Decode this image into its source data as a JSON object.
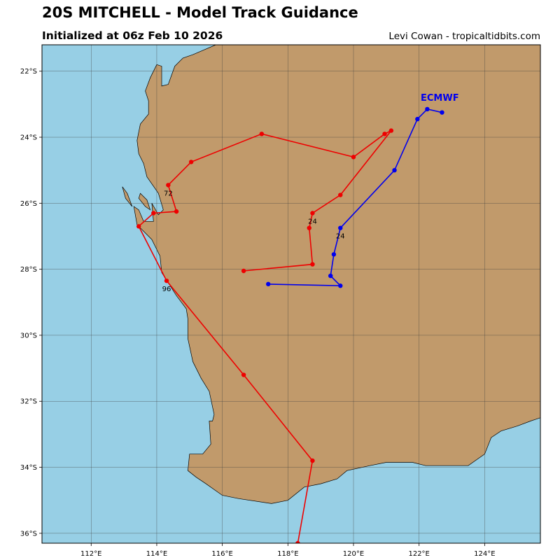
{
  "header": {
    "title": "20S MITCHELL - Model Track Guidance",
    "subtitle": "Initialized at 06z Feb 10 2026",
    "credit": "Levi Cowan - tropicaltidbits.com"
  },
  "colors": {
    "ocean": "#97cfe5",
    "land": "#c19a6b",
    "grid": "#3f3f3f",
    "ecmwf": "#0000ee",
    "other_track": "#ee0000"
  },
  "map": {
    "lon_range": [
      110.5,
      125.7
    ],
    "lat_range": [
      -36.3,
      -21.2
    ],
    "lon_ticks": [
      112,
      114,
      116,
      118,
      120,
      122,
      124
    ],
    "lat_ticks": [
      -22,
      -24,
      -26,
      -28,
      -30,
      -32,
      -34,
      -36
    ],
    "lon_tick_labels": [
      "112°E",
      "114°E",
      "116°E",
      "118°E",
      "120°E",
      "122°E",
      "124°E"
    ],
    "lat_tick_labels": [
      "22°S",
      "24°S",
      "26°S",
      "28°S",
      "30°S",
      "32°S",
      "34°S",
      "36°S"
    ],
    "grid": true,
    "coastline": [
      [
        115.8,
        -21.2
      ],
      [
        115.1,
        -21.5
      ],
      [
        114.8,
        -21.6
      ],
      [
        114.55,
        -21.85
      ],
      [
        114.35,
        -22.4
      ],
      [
        114.15,
        -22.45
      ],
      [
        114.15,
        -21.85
      ],
      [
        114.0,
        -21.8
      ],
      [
        113.8,
        -22.2
      ],
      [
        113.65,
        -22.6
      ],
      [
        113.75,
        -22.9
      ],
      [
        113.75,
        -23.3
      ],
      [
        113.5,
        -23.6
      ],
      [
        113.4,
        -24.1
      ],
      [
        113.45,
        -24.5
      ],
      [
        113.6,
        -24.8
      ],
      [
        113.7,
        -25.2
      ],
      [
        114.05,
        -25.7
      ],
      [
        114.2,
        -26.2
      ],
      [
        114.05,
        -26.35
      ],
      [
        113.85,
        -26.0
      ],
      [
        113.9,
        -26.55
      ],
      [
        113.6,
        -26.55
      ],
      [
        113.45,
        -26.2
      ],
      [
        113.3,
        -26.1
      ],
      [
        113.4,
        -26.65
      ],
      [
        113.85,
        -27.1
      ],
      [
        114.1,
        -27.6
      ],
      [
        114.15,
        -28.1
      ],
      [
        114.6,
        -28.8
      ],
      [
        114.9,
        -29.2
      ],
      [
        114.95,
        -29.5
      ],
      [
        114.95,
        -30.1
      ],
      [
        115.1,
        -30.8
      ],
      [
        115.35,
        -31.3
      ],
      [
        115.6,
        -31.7
      ],
      [
        115.75,
        -32.4
      ],
      [
        115.7,
        -32.6
      ],
      [
        115.6,
        -32.6
      ],
      [
        115.65,
        -33.3
      ],
      [
        115.4,
        -33.6
      ],
      [
        115.0,
        -33.6
      ],
      [
        114.95,
        -34.1
      ],
      [
        115.2,
        -34.3
      ],
      [
        115.5,
        -34.5
      ],
      [
        116.0,
        -34.85
      ],
      [
        116.5,
        -34.95
      ],
      [
        117.5,
        -35.1
      ],
      [
        118.0,
        -35.0
      ],
      [
        118.5,
        -34.6
      ],
      [
        119.0,
        -34.5
      ],
      [
        119.5,
        -34.35
      ],
      [
        119.8,
        -34.1
      ],
      [
        120.5,
        -33.95
      ],
      [
        121.0,
        -33.85
      ],
      [
        121.8,
        -33.85
      ],
      [
        122.2,
        -33.95
      ],
      [
        123.0,
        -33.95
      ],
      [
        123.5,
        -33.95
      ],
      [
        124.0,
        -33.6
      ],
      [
        124.2,
        -33.1
      ],
      [
        124.5,
        -32.9
      ],
      [
        125.0,
        -32.75
      ],
      [
        125.4,
        -32.6
      ],
      [
        125.7,
        -32.5
      ]
    ],
    "islands": [
      [
        [
          112.95,
          -25.5
        ],
        [
          113.1,
          -25.7
        ],
        [
          113.25,
          -26.1
        ],
        [
          113.05,
          -25.85
        ],
        [
          112.95,
          -25.5
        ]
      ],
      [
        [
          113.5,
          -25.7
        ],
        [
          113.7,
          -25.9
        ],
        [
          113.8,
          -26.2
        ],
        [
          113.65,
          -26.1
        ],
        [
          113.45,
          -25.85
        ],
        [
          113.5,
          -25.7
        ]
      ]
    ]
  },
  "tracks": [
    {
      "name": "ECMWF",
      "color": "#0000ee",
      "points": [
        [
          122.7,
          -23.25
        ],
        [
          122.25,
          -23.15
        ],
        [
          121.95,
          -23.45
        ],
        [
          121.25,
          -25.0
        ],
        [
          119.6,
          -26.75
        ],
        [
          119.4,
          -27.55
        ],
        [
          119.3,
          -28.2
        ],
        [
          119.6,
          -28.5
        ],
        [
          117.4,
          -28.45
        ]
      ],
      "labels": [
        {
          "point": 4,
          "text": "24"
        }
      ]
    },
    {
      "name": "",
      "color": "#ee0000",
      "points": [
        [
          118.3,
          -36.3
        ],
        [
          118.75,
          -33.8
        ],
        [
          116.65,
          -31.2
        ],
        [
          114.3,
          -28.35
        ],
        [
          113.45,
          -26.7
        ],
        [
          113.9,
          -26.3
        ],
        [
          114.6,
          -26.25
        ],
        [
          114.35,
          -25.45
        ],
        [
          115.05,
          -24.75
        ],
        [
          117.2,
          -23.9
        ],
        [
          120.0,
          -24.6
        ],
        [
          120.95,
          -23.9
        ],
        [
          121.15,
          -23.8
        ],
        [
          119.6,
          -25.75
        ],
        [
          118.75,
          -26.3
        ],
        [
          118.65,
          -26.75
        ],
        [
          118.75,
          -27.85
        ],
        [
          116.65,
          -28.05
        ]
      ],
      "labels": [
        {
          "point": 3,
          "text": "96"
        },
        {
          "point": 7,
          "text": "72"
        },
        {
          "point": 14,
          "text": "24"
        }
      ]
    }
  ],
  "model_label": {
    "text": "ECMWF",
    "lon": 122.05,
    "lat": -22.9
  }
}
